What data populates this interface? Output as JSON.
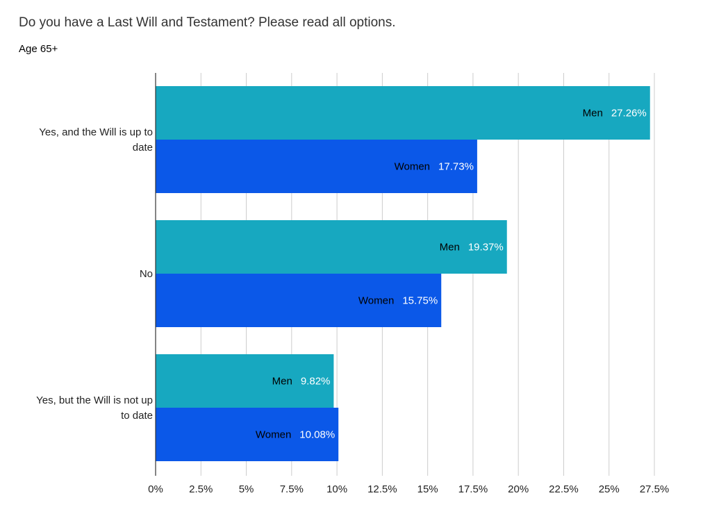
{
  "chart_data": {
    "type": "bar",
    "orientation": "horizontal",
    "title": "Do you have a Last Will and Testament? Please read all options.",
    "subtitle": "Age 65+",
    "categories": [
      "Yes, and the Will is up to date",
      "No",
      "Yes, but the Will is not up to date"
    ],
    "category_lines": [
      [
        "Yes, and the Will is up to",
        "date"
      ],
      [
        "No"
      ],
      [
        "Yes, but the Will is not up",
        "to date"
      ]
    ],
    "series": [
      {
        "name": "Men",
        "color": "#17a8c0",
        "values": [
          27.26,
          19.37,
          9.82
        ],
        "labels": [
          "27.26%",
          "19.37%",
          "9.82%"
        ]
      },
      {
        "name": "Women",
        "color": "#0b58e8",
        "values": [
          17.73,
          15.75,
          10.08
        ],
        "labels": [
          "17.73%",
          "15.75%",
          "10.08%"
        ]
      }
    ],
    "xlim": [
      0,
      27.5
    ],
    "xticks": [
      0,
      2.5,
      5,
      7.5,
      10,
      12.5,
      15,
      17.5,
      20,
      22.5,
      25,
      27.5
    ],
    "xtick_labels": [
      "0%",
      "2.5%",
      "5%",
      "7.5%",
      "10%",
      "12.5%",
      "15%",
      "17.5%",
      "20%",
      "22.5%",
      "25%",
      "27.5%"
    ],
    "xlabel": "",
    "ylabel": "",
    "grid": true,
    "legend": "none"
  }
}
